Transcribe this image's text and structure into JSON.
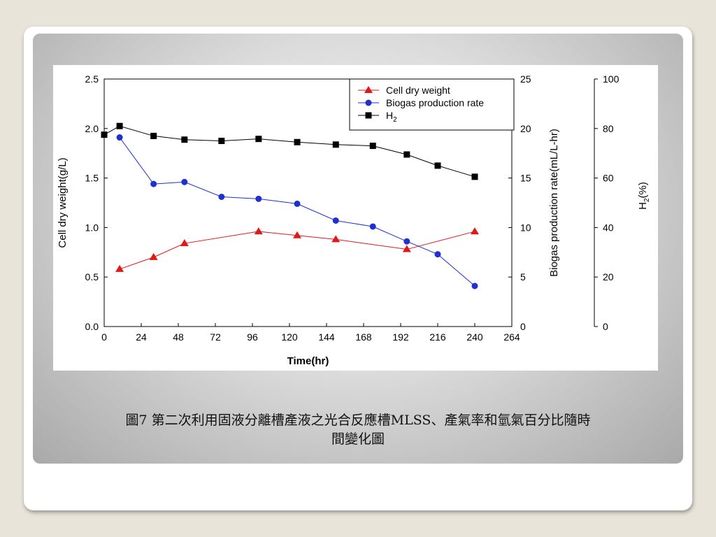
{
  "caption": {
    "line1": "圖7 第二次利用固液分離槽產液之光合反應槽MLSS、產氣率和氫氣百分比隨時",
    "line2": "間變化圖"
  },
  "chart_data": {
    "type": "line",
    "xlabel": "Time(hr)",
    "x_ticks": [
      "0",
      "24",
      "48",
      "72",
      "96",
      "120",
      "144",
      "168",
      "192",
      "216",
      "240",
      "264"
    ],
    "xlim": [
      0,
      264
    ],
    "axes": {
      "left": {
        "label": "Cell dry weight(g/L)",
        "ylim": [
          0,
          2.5
        ],
        "ticks": [
          "0.0",
          "0.5",
          "1.0",
          "1.5",
          "2.0",
          "2.5"
        ]
      },
      "right": {
        "label": "Biogas production rate(mL/L-hr)",
        "ylim": [
          0,
          25
        ],
        "ticks": [
          "0",
          "5",
          "10",
          "15",
          "20",
          "25"
        ]
      },
      "far_right": {
        "label_main": "H",
        "label_sub": "2",
        "label_tail": "(%)",
        "ylim": [
          0,
          100
        ],
        "ticks": [
          "0",
          "20",
          "40",
          "60",
          "80",
          "100"
        ]
      }
    },
    "legend": {
      "position": "top-right",
      "entries": [
        {
          "text": "Cell dry weight"
        },
        {
          "text": "Biogas production rate"
        },
        {
          "text_main": "H",
          "text_sub": "2"
        }
      ]
    },
    "series": [
      {
        "name": "Cell dry weight",
        "axis": "left",
        "color": "#e01818",
        "marker": "triangle",
        "x": [
          10,
          32,
          52,
          100,
          125,
          150,
          196,
          240
        ],
        "y": [
          0.58,
          0.7,
          0.84,
          0.96,
          0.92,
          0.88,
          0.78,
          0.96
        ]
      },
      {
        "name": "Biogas production rate",
        "axis": "right",
        "color": "#1f2fd0",
        "marker": "circle",
        "x": [
          10,
          32,
          52,
          76,
          100,
          125,
          150,
          174,
          196,
          216,
          240
        ],
        "y": [
          19.1,
          14.4,
          14.6,
          13.1,
          12.9,
          12.4,
          10.7,
          10.1,
          8.6,
          7.3,
          4.1
        ]
      },
      {
        "name": "H2",
        "axis": "far_right",
        "color": "#000000",
        "marker": "square",
        "x": [
          0,
          10,
          32,
          52,
          76,
          100,
          125,
          150,
          174,
          196,
          216,
          240
        ],
        "y": [
          77.5,
          81.0,
          77.0,
          75.5,
          75.0,
          75.8,
          74.5,
          73.5,
          73.0,
          69.5,
          65.0,
          60.5
        ]
      }
    ]
  }
}
